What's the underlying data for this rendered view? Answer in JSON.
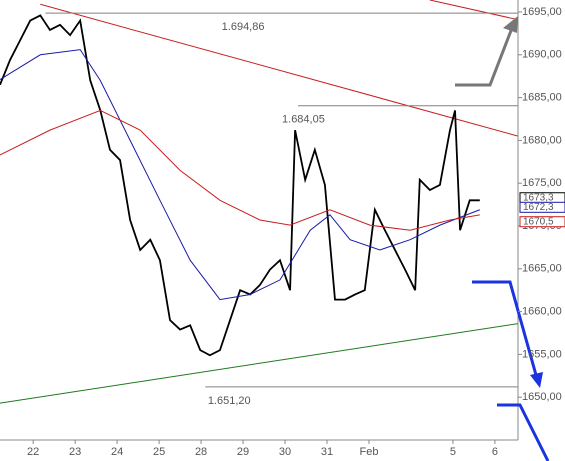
{
  "chart_data": {
    "type": "line",
    "xlim": [
      -0.79,
      11.55
    ],
    "ylim": [
      1645,
      1696.4
    ],
    "xticks": [
      {
        "value": 0,
        "label": "22"
      },
      {
        "value": 1,
        "label": "23"
      },
      {
        "value": 2,
        "label": "24"
      },
      {
        "value": 3,
        "label": "25"
      },
      {
        "value": 4,
        "label": "28"
      },
      {
        "value": 5,
        "label": "29"
      },
      {
        "value": 6,
        "label": "30"
      },
      {
        "value": 7,
        "label": "31"
      },
      {
        "value": 8,
        "label": "Feb"
      },
      {
        "value": 10,
        "label": "5"
      },
      {
        "value": 11,
        "label": "6"
      }
    ],
    "yticks": [
      {
        "value": 1650,
        "label": "1650,00"
      },
      {
        "value": 1655,
        "label": "1655,00"
      },
      {
        "value": 1660,
        "label": "1660,00"
      },
      {
        "value": 1665,
        "label": "1665,00"
      },
      {
        "value": 1670,
        "label": "1670,00"
      },
      {
        "value": 1675,
        "label": "1675,00"
      },
      {
        "value": 1680,
        "label": "1680,00"
      },
      {
        "value": 1685,
        "label": "1685,00"
      },
      {
        "value": 1690,
        "label": "1690,00"
      },
      {
        "value": 1695,
        "label": "1695,00"
      }
    ],
    "series": [
      {
        "color": "#000000",
        "x": [
          -0.79,
          -0.55,
          -0.31,
          -0.07,
          0.17,
          0.4,
          0.64,
          0.88,
          1.12,
          1.36,
          1.6,
          1.83,
          2.07,
          2.31,
          2.55,
          2.79,
          3.02,
          3.26,
          3.5,
          3.74,
          3.98,
          4.21,
          4.45,
          4.69,
          4.93,
          5.17,
          5.4,
          5.64,
          5.88,
          6.12,
          6.24,
          6.48,
          6.71,
          6.95,
          7.19,
          7.43,
          7.67,
          7.9,
          8.14,
          8.38,
          8.62,
          8.86,
          9.1,
          9.21,
          9.45,
          9.69,
          9.93,
          10.05,
          10.17,
          10.4,
          10.64
        ],
        "values": [
          1686.5,
          1689.4,
          1691.7,
          1694,
          1694.6,
          1692.9,
          1693.5,
          1692.3,
          1694,
          1687,
          1683.5,
          1678.9,
          1677.7,
          1670.7,
          1667.2,
          1668.4,
          1666,
          1659,
          1657.9,
          1658.4,
          1655.5,
          1654.9,
          1655.5,
          1659,
          1662.5,
          1662,
          1663.1,
          1664.9,
          1666,
          1662.5,
          1681.2,
          1675.4,
          1678.9,
          1674.8,
          1661.4,
          1661.4,
          1662,
          1662.5,
          1671.9,
          1669.5,
          1667.2,
          1664.9,
          1662.5,
          1675.4,
          1674.2,
          1674.8,
          1681.2,
          1683.5,
          1669.5,
          1673,
          1673
        ]
      },
      {
        "color": "#1a1aa8",
        "x": [
          -0.79,
          0.17,
          1.12,
          1.6,
          2.31,
          3.02,
          3.74,
          4.45,
          5.17,
          5.88,
          6.6,
          7.07,
          7.55,
          8.26,
          8.98,
          9.69,
          10.64
        ],
        "values": [
          1687.1,
          1690,
          1690.6,
          1687,
          1680,
          1673,
          1666,
          1661.4,
          1662,
          1663.7,
          1669.5,
          1671.3,
          1668.4,
          1667.2,
          1668.4,
          1670.1,
          1671.9
        ]
      },
      {
        "color": "#c81e1e",
        "x": [
          -0.79,
          0.4,
          1.6,
          2.55,
          3.5,
          4.45,
          5.4,
          6.12,
          7.07,
          8.02,
          8.98,
          9.93,
          10.64
        ],
        "values": [
          1678.3,
          1681.2,
          1683.5,
          1681.2,
          1676.5,
          1673,
          1670.7,
          1670.1,
          1671.9,
          1670.1,
          1669.5,
          1670.7,
          1671.3
        ]
      }
    ],
    "lines": [
      {
        "color": "#c81e1e",
        "x": [
          0.17,
          11.55
        ],
        "y": [
          1695.9,
          1680.5
        ]
      },
      {
        "color": "#c81e1e",
        "x": [
          9.45,
          11.55
        ],
        "y": [
          1696.4,
          1694.1
        ]
      },
      {
        "color": "#1e7a1e",
        "x": [
          -0.79,
          11.55
        ],
        "y": [
          1649.3,
          1658.6
        ]
      },
      {
        "color": "#808080",
        "x": [
          0.29,
          11.55
        ],
        "y": [
          1694.86,
          1694.86
        ],
        "label": "1.694,86"
      },
      {
        "color": "#808080",
        "x": [
          6.31,
          11.55
        ],
        "y": [
          1684.05,
          1684.05
        ],
        "label": "1.684,05"
      },
      {
        "color": "#808080",
        "x": [
          4.1,
          11.55
        ],
        "y": [
          1651.2,
          1651.2
        ],
        "label": "1.651,20"
      }
    ],
    "last_values": [
      {
        "value": 1673.3,
        "label": "1673,3",
        "color": "#000000"
      },
      {
        "value": 1672.3,
        "label": "1672,3",
        "color": "#1a1aa8"
      },
      {
        "value": 1670.5,
        "label": "1670,5",
        "color": "#c81e1e"
      }
    ]
  }
}
